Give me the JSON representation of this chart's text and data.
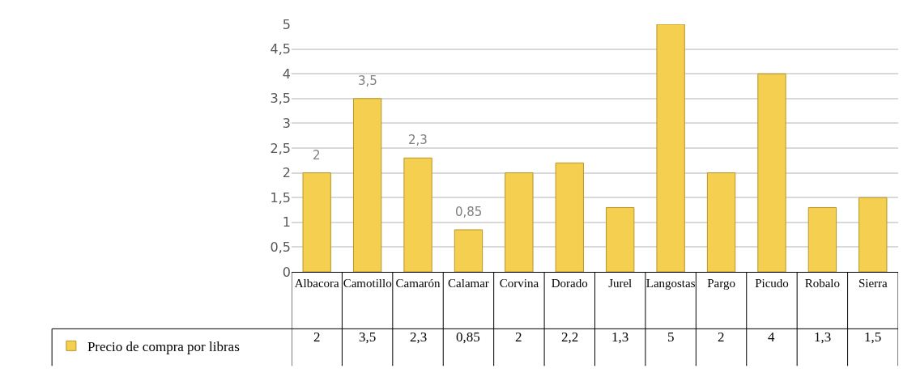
{
  "chart_data": {
    "type": "bar",
    "categories": [
      "Albacora",
      "Camotillo",
      "Camarón",
      "Calamar",
      "Corvina",
      "Dorado",
      "Jurel",
      "Langostas",
      "Pargo",
      "Picudo",
      "Robalo",
      "Sierra"
    ],
    "series": [
      {
        "name": "Precio de compra por libras",
        "color": "#f5cf4f",
        "values": [
          2,
          3.5,
          2.3,
          0.85,
          2,
          2.2,
          1.3,
          5,
          2,
          4,
          1.3,
          1.5
        ],
        "value_labels": [
          "2",
          "3,5",
          "2,3",
          "0,85",
          "2",
          "2,2",
          "1,3",
          "5",
          "2",
          "4",
          "1,3",
          "1,5"
        ]
      }
    ],
    "annotations": [
      {
        "text": "2",
        "x": "Albacora",
        "y": 2
      },
      {
        "text": "3,5",
        "x": "Camotillo",
        "y": 3.5
      },
      {
        "text": "2,3",
        "x": "Camarón",
        "y": 2.3
      },
      {
        "text": "0,85",
        "x": "Calamar",
        "y": 0.85
      }
    ],
    "ylim": [
      0,
      5
    ],
    "yticks": [
      0,
      {
        "value": 0.5,
        "label": "0,5"
      },
      1,
      {
        "value": 1.5,
        "label": "1,5"
      },
      2,
      {
        "value": 2.5,
        "label": "2,5"
      },
      3,
      {
        "value": 3.5,
        "label": "3,5"
      },
      4,
      {
        "value": 4.5,
        "label": "4,5"
      },
      5
    ],
    "grid": "y",
    "legend": "bottom left"
  }
}
